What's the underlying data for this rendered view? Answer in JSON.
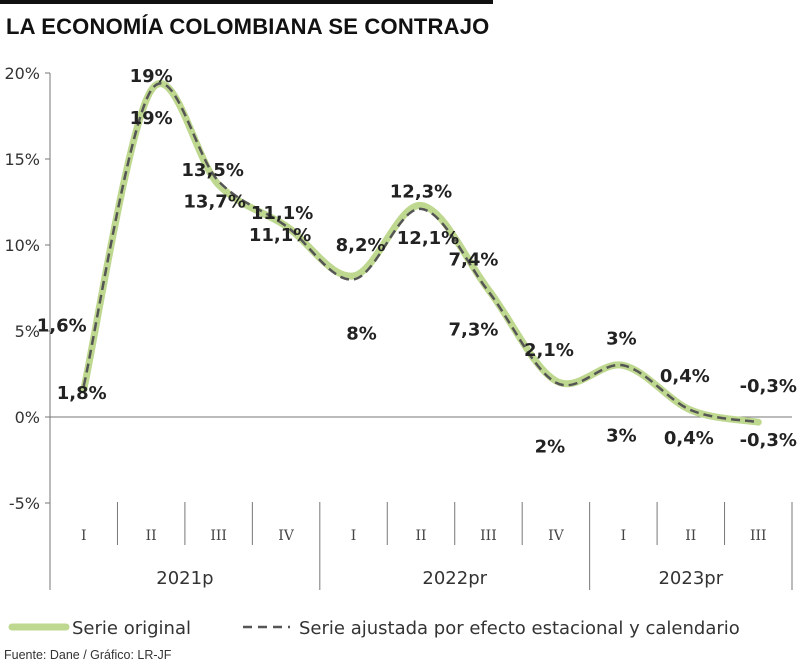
{
  "title": "LA ECONOMÍA COLOMBIANA SE CONTRAJO",
  "source": "Fuente: Dane / Gráfico: LR-JF",
  "colors": {
    "original": "#bfd88f",
    "adjusted": "#555555",
    "axis": "#777777",
    "text": "#222222"
  },
  "chart_data": {
    "type": "line",
    "ylim": [
      -5,
      20
    ],
    "yticks": [
      -5,
      0,
      5,
      10,
      15,
      20
    ],
    "ytick_labels": [
      "-5%",
      "0%",
      "5%",
      "10%",
      "15%",
      "20%"
    ],
    "categories": [
      "I",
      "II",
      "III",
      "IV",
      "I",
      "II",
      "III",
      "IV",
      "I",
      "II",
      "III"
    ],
    "years": [
      {
        "label": "2021p",
        "from": 0,
        "to": 3
      },
      {
        "label": "2022pr",
        "from": 4,
        "to": 7
      },
      {
        "label": "2023pr",
        "from": 8,
        "to": 10
      }
    ],
    "series": [
      {
        "name": "Serie original",
        "values": [
          1.6,
          19,
          13.5,
          11.1,
          8.2,
          12.3,
          7.4,
          2.1,
          3,
          0.4,
          -0.3
        ],
        "labels": [
          "1,6%",
          "19%",
          "13,5%",
          "11,1%",
          "8,2%",
          "12,3%",
          "7,4%",
          "2,1%",
          "3%",
          "0,4%",
          "-0,3%"
        ]
      },
      {
        "name": "Serie ajustada por efecto estacional y calendario",
        "values": [
          1.8,
          19,
          13.7,
          11.1,
          8,
          12.1,
          7.3,
          2,
          3,
          0.4,
          -0.3
        ],
        "labels": [
          "1,8%",
          "19%",
          "13,7%",
          "11,1%",
          "8%",
          "12,1%",
          "7,3%",
          "2%",
          "3%",
          "0,4%",
          "-0,3%"
        ]
      }
    ],
    "legend": {
      "placement": "bottom"
    },
    "grid": false
  }
}
